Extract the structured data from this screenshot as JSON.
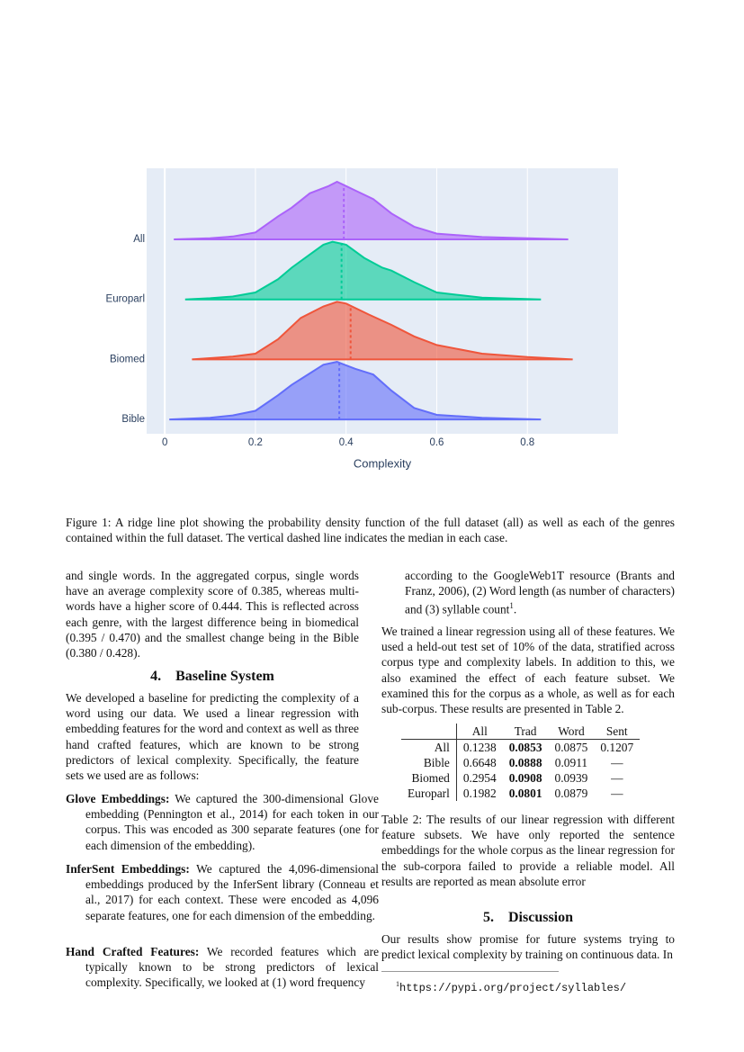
{
  "chart_data": {
    "type": "ridge",
    "x_label": "Complexity",
    "xlim": [
      -0.04,
      1.0
    ],
    "xticks": [
      0,
      0.2,
      0.4,
      0.6,
      0.8
    ],
    "grid": true,
    "series": [
      {
        "name": "All",
        "color": "#ab63fa",
        "median": 0.395,
        "x": [
          0.02,
          0.1,
          0.15,
          0.2,
          0.25,
          0.28,
          0.32,
          0.36,
          0.38,
          0.42,
          0.46,
          0.5,
          0.55,
          0.6,
          0.7,
          0.8,
          0.89
        ],
        "values": [
          0,
          0.02,
          0.05,
          0.12,
          0.4,
          0.55,
          0.8,
          0.92,
          1.0,
          0.85,
          0.7,
          0.45,
          0.22,
          0.1,
          0.04,
          0.02,
          0
        ]
      },
      {
        "name": "Europarl",
        "color": "#00cc96",
        "median": 0.39,
        "x": [
          0.045,
          0.1,
          0.15,
          0.2,
          0.25,
          0.28,
          0.32,
          0.35,
          0.37,
          0.4,
          0.44,
          0.48,
          0.5,
          0.55,
          0.6,
          0.7,
          0.83
        ],
        "values": [
          0,
          0.02,
          0.05,
          0.12,
          0.35,
          0.55,
          0.78,
          0.95,
          1.0,
          0.95,
          0.72,
          0.55,
          0.5,
          0.3,
          0.12,
          0.03,
          0
        ]
      },
      {
        "name": "Biomed",
        "color": "#ef553b",
        "median": 0.41,
        "x": [
          0.06,
          0.15,
          0.2,
          0.25,
          0.3,
          0.35,
          0.38,
          0.4,
          0.45,
          0.5,
          0.55,
          0.6,
          0.7,
          0.8,
          0.9
        ],
        "values": [
          0,
          0.05,
          0.1,
          0.35,
          0.72,
          0.92,
          1.0,
          0.97,
          0.78,
          0.6,
          0.4,
          0.25,
          0.1,
          0.04,
          0
        ]
      },
      {
        "name": "Bible",
        "color": "#636efa",
        "median": 0.385,
        "x": [
          0.01,
          0.1,
          0.15,
          0.2,
          0.25,
          0.28,
          0.32,
          0.35,
          0.38,
          0.42,
          0.46,
          0.5,
          0.55,
          0.6,
          0.7,
          0.83
        ],
        "values": [
          0,
          0.03,
          0.07,
          0.15,
          0.42,
          0.6,
          0.8,
          0.95,
          1.0,
          0.88,
          0.78,
          0.5,
          0.2,
          0.08,
          0.03,
          0
        ]
      }
    ]
  },
  "document": {
    "figure_caption": "Figure 1: A ridge line plot showing the probability density function of the full dataset (all) as well as each of the genres contained within the full dataset. The vertical dashed line indicates the median in each case.",
    "left_paragraph_1": "and single words. In the aggregated corpus, single words have an average complexity score of 0.385, whereas multi-words have a higher score of 0.444. This is reflected across each genre, with the largest difference being in biomedical (0.395 / 0.470) and the smallest change being in the Bible (0.380 / 0.428).",
    "section_4": "4. Baseline System",
    "left_paragraph_2": "We developed a baseline for predicting the complexity of a word using our data. We used a linear regression with embedding features for the word and context as well as three hand crafted features, which are known to be strong predictors of lexical complexity. Specifically, the feature sets we used are as follows:",
    "features": [
      {
        "term": "Glove Embeddings:",
        "text": "We captured the 300-dimensional Glove embedding (Pennington et al., 2014) for each token in our corpus. This was encoded as 300 separate features (one for each dimension of the embedding)."
      },
      {
        "term": "InferSent Embeddings:",
        "text": "We captured the 4,096-dimensional embeddings produced by the InferSent library (Conneau et al., 2017) for each context. These were encoded as 4,096 separate features, one for each dimension of the embedding."
      },
      {
        "term": "Hand Crafted Features:",
        "text": "We recorded features which are typically known to be strong predictors of lexical complexity. Specifically, we looked at (1) word frequency"
      }
    ],
    "right_continuation": "according to the GoogleWeb1T resource (Brants and Franz, 2006), (2) Word length (as number of characters) and (3) syllable count",
    "footnote_marker": "1",
    "right_paragraph_1": "We trained a linear regression using all of these features. We used a held-out test set of 10% of the data, stratified across corpus type and complexity labels. In addition to this, we also examined the effect of each feature subset. We examined this for the corpus as a whole, as well as for each sub-corpus. These results are presented in Table 2.",
    "table": {
      "headers": [
        "All",
        "Trad",
        "Word",
        "Sent"
      ],
      "rows": [
        {
          "label": "All",
          "cells": [
            "0.1238",
            "0.0853",
            "0.0875",
            "0.1207"
          ]
        },
        {
          "label": "Bible",
          "cells": [
            "0.6648",
            "0.0888",
            "0.0911",
            "—"
          ]
        },
        {
          "label": "Biomed",
          "cells": [
            "0.2954",
            "0.0908",
            "0.0939",
            "—"
          ]
        },
        {
          "label": "Europarl",
          "cells": [
            "0.1982",
            "0.0801",
            "0.0879",
            "—"
          ]
        }
      ]
    },
    "table_caption": "Table 2: The results of our linear regression with different feature subsets. We have only reported the sentence embeddings for the whole corpus as the linear regression for the sub-corpora failed to provide a reliable model. All results are reported as mean absolute error",
    "section_5": "5. Discussion",
    "right_paragraph_2": "Our results show promise for future systems trying to predict lexical complexity by training on continuous data. In",
    "footnote_url": "https://pypi.org/project/syllables/"
  }
}
